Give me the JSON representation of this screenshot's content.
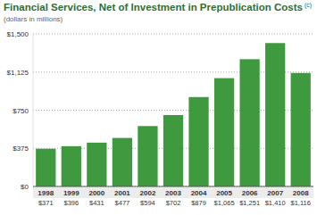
{
  "chart_data": {
    "type": "bar",
    "title": "Financial Services, Net of Investment in Prepublication Costs",
    "annotations": [
      "(c)"
    ],
    "subtitle": "(dollars in millions)",
    "categories": [
      "1998",
      "1999",
      "2000",
      "2001",
      "2002",
      "2003",
      "2004",
      "2005",
      "2006",
      "2007",
      "2008"
    ],
    "values": [
      371,
      396,
      431,
      477,
      594,
      702,
      879,
      1065,
      1251,
      1410,
      1116
    ],
    "value_labels": [
      "$371",
      "$396",
      "$431",
      "$477",
      "$594",
      "$702",
      "$879",
      "$1,065",
      "$1,251",
      "$1,410",
      "$1,116"
    ],
    "data_labels": true,
    "color": "#3f9a3f",
    "ylim": [
      0,
      1500
    ],
    "yticks": [
      {
        "value": 0,
        "label": "$0"
      },
      {
        "value": 375,
        "label": "$375"
      },
      {
        "value": 750,
        "label": "$750"
      },
      {
        "value": 1125,
        "label": "$1,125"
      },
      {
        "value": 1500,
        "label": "$1,500"
      }
    ],
    "grid": true
  }
}
